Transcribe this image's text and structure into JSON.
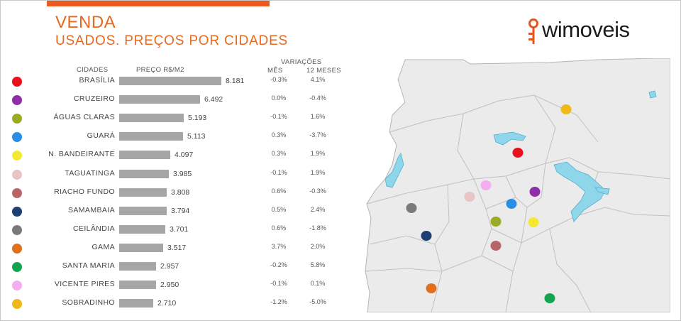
{
  "title": "VENDA",
  "subtitle": "USADOS. PREÇOS POR CIDADES",
  "logo": {
    "text": "wimoveis"
  },
  "headers": {
    "cidades": "CIDADES",
    "preco": "PREÇO R$/M2",
    "variacoes": "VARIAÇÕES",
    "mes": "MÊS",
    "meses12": "12 MESES"
  },
  "chart_data": {
    "type": "bar",
    "orientation": "horizontal",
    "categories": [
      "BRASÍLIA",
      "CRUZEIRO",
      "ÁGUAS  CLARAS",
      "GUARÁ",
      "N. BANDEIRANTE",
      "TAGUATINGA",
      "RIACHO FUNDO",
      "SAMAMBAIA",
      "CEILÂNDIA",
      "GAMA",
      "SANTA MARIA",
      "VICENTE PIRES",
      "SOBRADINHO"
    ],
    "values": [
      8181,
      6492,
      5193,
      5113,
      4097,
      3985,
      3808,
      3794,
      3701,
      3517,
      2957,
      2950,
      2710
    ],
    "value_labels": [
      "8.181",
      "6.492",
      "5.193",
      "5.113",
      "4.097",
      "3.985",
      "3.808",
      "3.794",
      "3.701",
      "3.517",
      "2.957",
      "2.950",
      "2.710"
    ],
    "var_mes": [
      "-0.3%",
      "0.0%",
      "-0.1%",
      "0.3%",
      "0.3%",
      "-0.1%",
      "0.6%",
      "0.5%",
      "0.6%",
      "3.7%",
      "-0.2%",
      "-0.1%",
      "-1.2%"
    ],
    "var_12m": [
      "4.1%",
      "-0.4%",
      "1.6%",
      "-3.7%",
      "1.9%",
      "1.9%",
      "-0.3%",
      "2.4%",
      "-1.8%",
      "2.0%",
      "5.8%",
      "0.1%",
      "-5.0%"
    ],
    "colors": [
      "#e8121c",
      "#8e2ea8",
      "#9aab24",
      "#2a8fe4",
      "#f4e833",
      "#e8c4c4",
      "#b86468",
      "#1d3f73",
      "#7a7a7a",
      "#e0701c",
      "#12a44e",
      "#f4aef0",
      "#f0b818"
    ],
    "bar_color": "#a6a6a6"
  }
}
